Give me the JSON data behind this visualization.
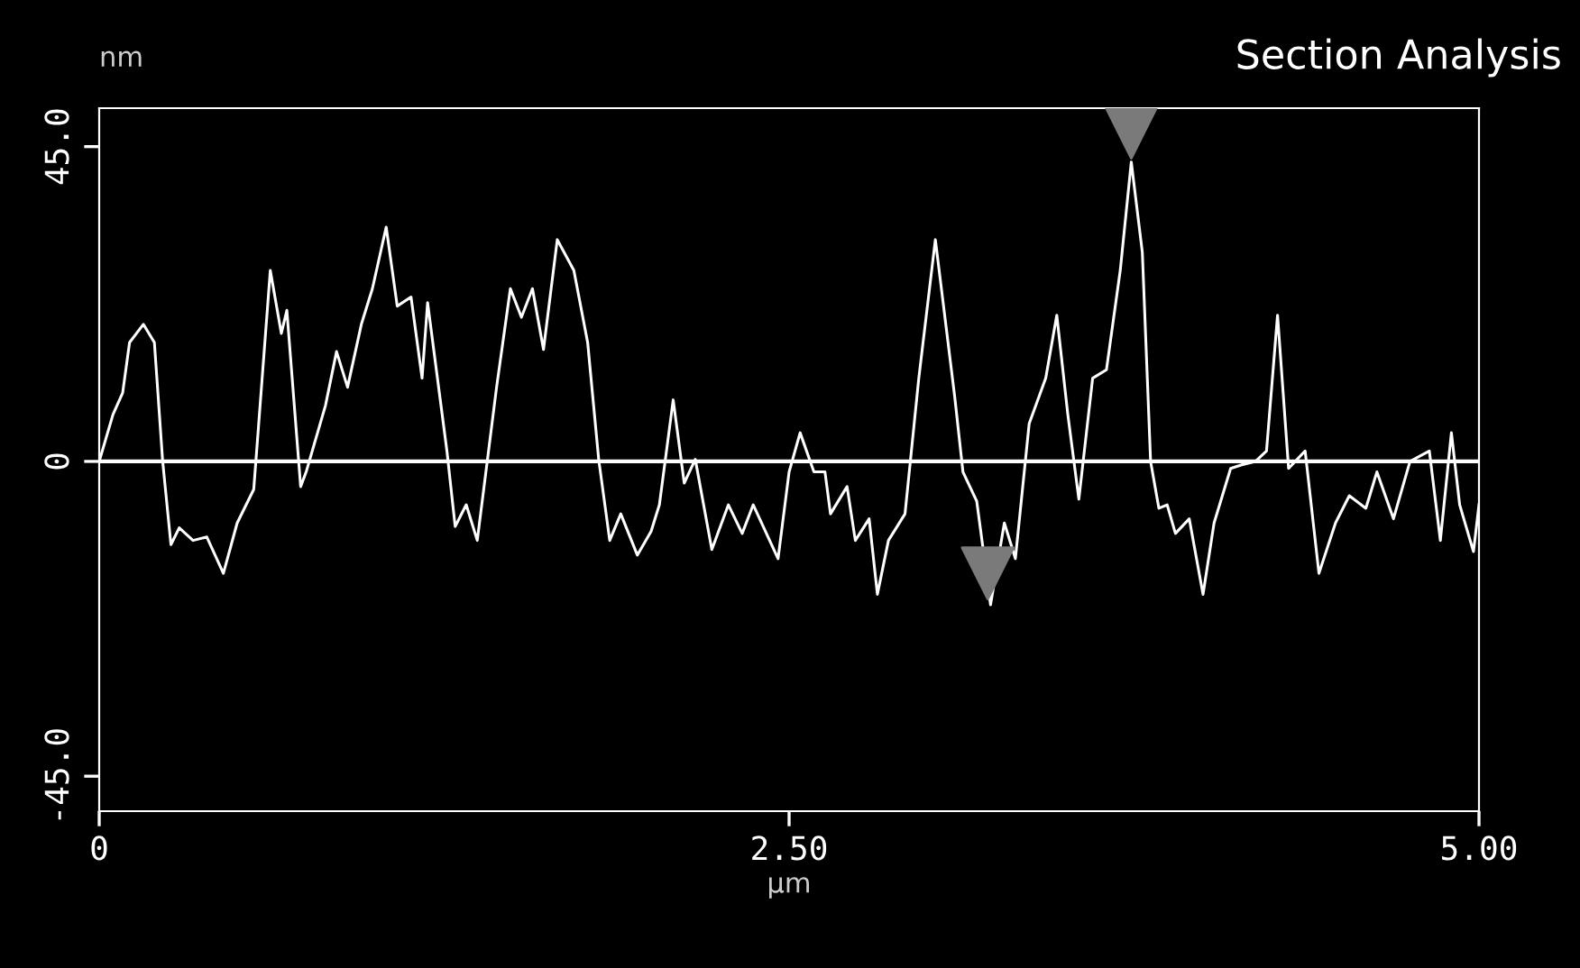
{
  "chart_data": {
    "type": "line",
    "title": "Section Analysis",
    "xlabel": "µm",
    "ylabel": "nm",
    "xlim": [
      0,
      5
    ],
    "ylim": [
      -50,
      50.5
    ],
    "xticks": [
      0,
      {
        "value": 2.5,
        "label": "2.50"
      },
      {
        "value": 5,
        "label": "5.00"
      }
    ],
    "yticks": [
      {
        "value": -45,
        "label": "-45.0"
      },
      0,
      {
        "value": 45,
        "label": "45.0"
      }
    ],
    "ref_lines": [
      {
        "axis": "y",
        "value": 0,
        "color": "#ffffff"
      }
    ],
    "series": [
      {
        "color": "#ffffff",
        "x": [
          0,
          0.05,
          0.085,
          0.11,
          0.16,
          0.2,
          0.23,
          0.26,
          0.29,
          0.34,
          0.39,
          0.45,
          0.5,
          0.56,
          0.62,
          0.66,
          0.68,
          0.73,
          0.75,
          0.82,
          0.86,
          0.9,
          0.95,
          0.99,
          1.04,
          1.08,
          1.13,
          1.17,
          1.19,
          1.26,
          1.29,
          1.33,
          1.37,
          1.44,
          1.49,
          1.53,
          1.57,
          1.61,
          1.66,
          1.72,
          1.77,
          1.81,
          1.85,
          1.89,
          1.95,
          2.0,
          2.03,
          2.08,
          2.12,
          2.16,
          2.22,
          2.28,
          2.33,
          2.37,
          2.46,
          2.5,
          2.54,
          2.59,
          2.63,
          2.65,
          2.71,
          2.74,
          2.79,
          2.82,
          2.86,
          2.92,
          2.97,
          3.03,
          3.1,
          3.13,
          3.18,
          3.23,
          3.28,
          3.32,
          3.37,
          3.43,
          3.47,
          3.51,
          3.55,
          3.6,
          3.65,
          3.7,
          3.74,
          3.78,
          3.81,
          3.84,
          3.87,
          3.9,
          3.95,
          4.0,
          4.04,
          4.1,
          4.14,
          4.19,
          4.23,
          4.27,
          4.31,
          4.37,
          4.42,
          4.48,
          4.53,
          4.59,
          4.63,
          4.69,
          4.75,
          4.82,
          4.86,
          4.9,
          4.93,
          4.98,
          5.0
        ],
        "values": [
          0,
          6.7,
          9.8,
          17,
          19.6,
          17,
          0,
          -11.9,
          -9.5,
          -11.3,
          -10.8,
          -16,
          -8.8,
          -4,
          27.3,
          18.3,
          21.6,
          -3.6,
          -1.5,
          8,
          15.7,
          10.6,
          19.6,
          24.7,
          33.5,
          22.2,
          23.5,
          11.9,
          22.7,
          1.5,
          -9.3,
          -6.2,
          -11.3,
          10.6,
          24.7,
          20.6,
          24.7,
          16,
          31.7,
          27.3,
          17,
          0.3,
          -11.3,
          -7.5,
          -13.4,
          -10,
          -6.2,
          8.8,
          -3.1,
          0.3,
          -12.6,
          -6.2,
          -10.3,
          -6.2,
          -13.9,
          -1.5,
          4.1,
          -1.5,
          -1.5,
          -7.5,
          -3.6,
          -11.3,
          -8.2,
          -19,
          -11.3,
          -7.5,
          11.9,
          31.7,
          9.3,
          -1.5,
          -5.7,
          -20.5,
          -8.8,
          -13.9,
          5.4,
          11.9,
          20.9,
          6.7,
          -5.4,
          11.9,
          13.1,
          27.3,
          42.8,
          29.9,
          0,
          -6.7,
          -6.2,
          -10.3,
          -8.2,
          -19,
          -8.8,
          -1,
          -0.5,
          0,
          1.5,
          20.9,
          -1,
          1.5,
          -16,
          -8.8,
          -4.9,
          -6.7,
          -1.5,
          -8.2,
          0,
          1.5,
          -11.3,
          4.1,
          -6.2,
          -12.9,
          -6.2
        ]
      },
      {
        "type": "scatter",
        "color": "#7a7a7a",
        "marker": "triangle",
        "x": [
          3.74,
          3.22
        ],
        "values": [
          47,
          -16
        ]
      }
    ]
  }
}
